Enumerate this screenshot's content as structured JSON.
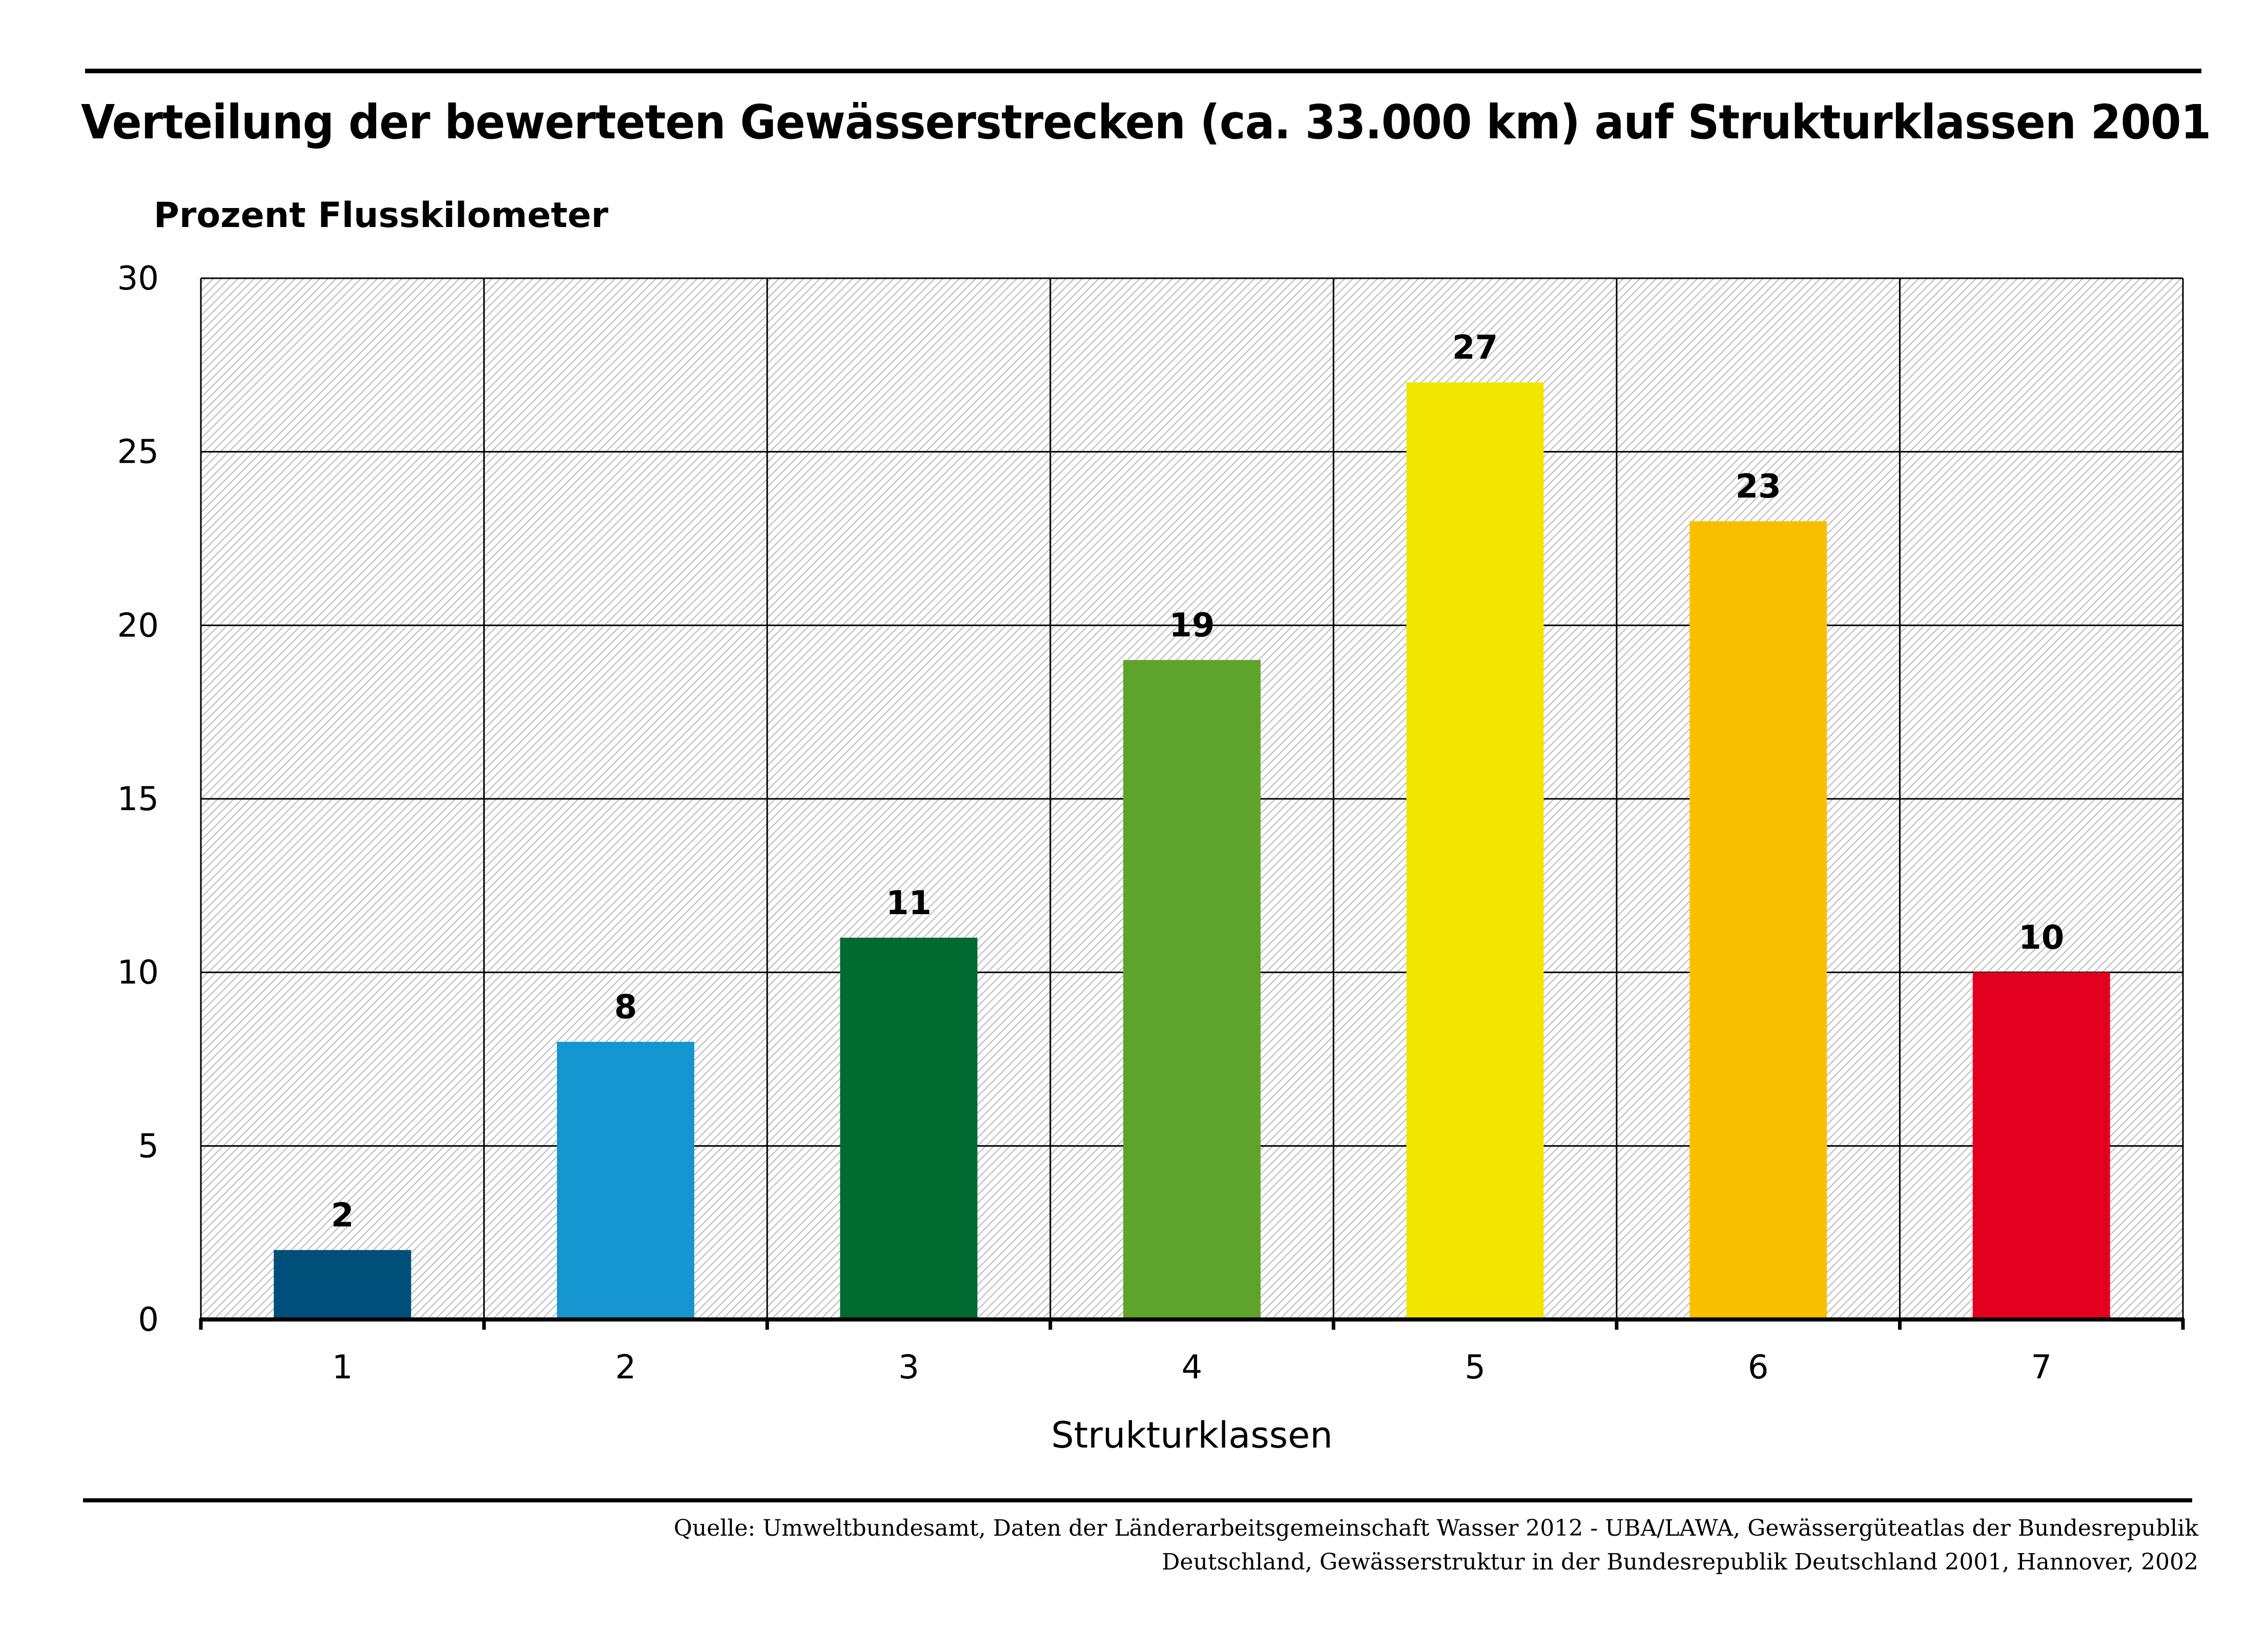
{
  "chart_data": {
    "type": "bar",
    "title": "Verteilung der bewerteten Gewässerstrecken (ca. 33.000 km) auf Strukturklassen 2001",
    "ylabel": "Prozent Flusskilometer",
    "xlabel": "Strukturklassen",
    "categories": [
      "1",
      "2",
      "3",
      "4",
      "5",
      "6",
      "7"
    ],
    "values": [
      2,
      8,
      11,
      19,
      27,
      23,
      10
    ],
    "value_labels": [
      "2",
      "8",
      "11",
      "19",
      "27",
      "23",
      "10"
    ],
    "colors": [
      "#004f7b",
      "#1596d0",
      "#006b30",
      "#5ea32b",
      "#f2e500",
      "#f9c000",
      "#e3001f"
    ],
    "ylim": [
      0,
      30
    ],
    "yticks": [
      0,
      5,
      10,
      15,
      20,
      25,
      30
    ],
    "ytick_labels": [
      "0",
      "5",
      "10",
      "15",
      "20",
      "25",
      "30"
    ],
    "grid": true
  },
  "source": {
    "line1": "Quelle: Umweltbundesamt, Daten der Länderarbeitsgemeinschaft Wasser 2012 - UBA/LAWA, Gewässergüteatlas der Bundesrepublik",
    "line2": "Deutschland, Gewässerstruktur in der Bundesrepublik Deutschland 2001, Hannover, 2002"
  }
}
